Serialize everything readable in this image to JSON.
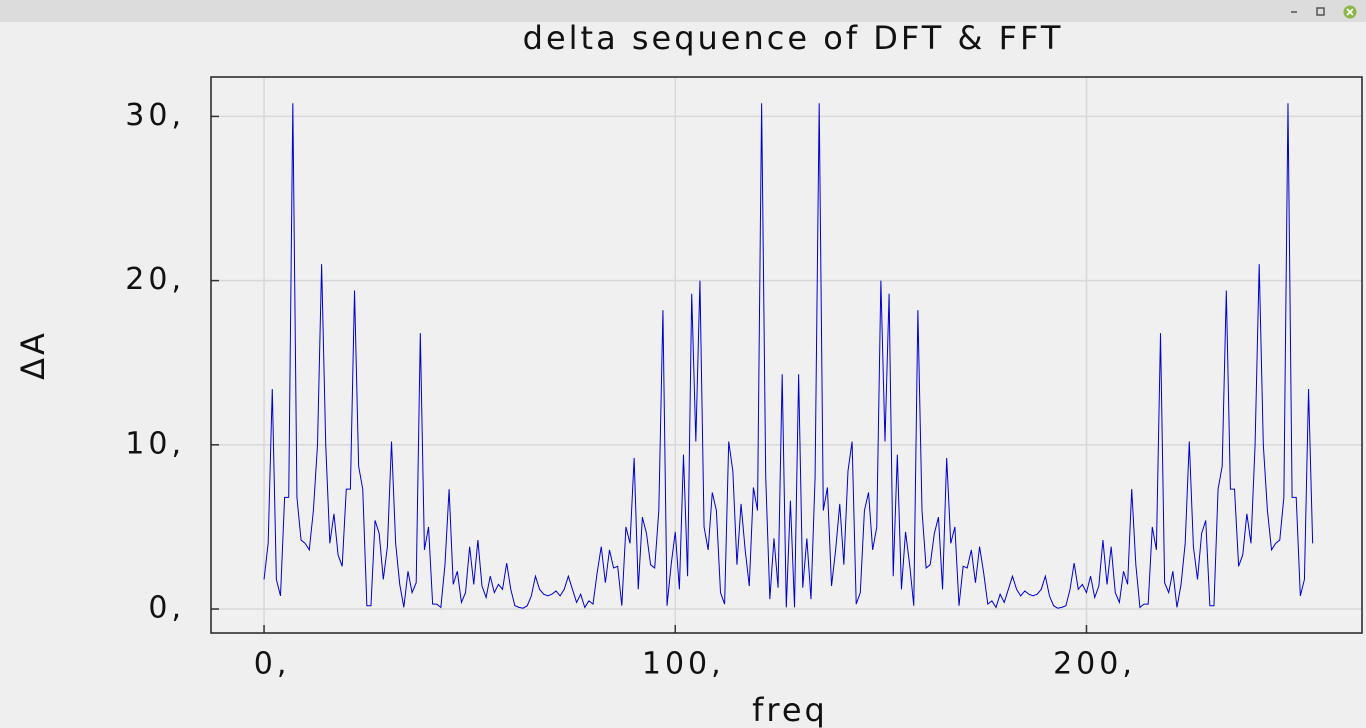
{
  "chart_data": {
    "type": "line",
    "title": "delta sequence of DFT & FFT",
    "x_label": "freq",
    "y_label": "ΔA",
    "color": "#0000cc",
    "grid": true,
    "xlim": [
      -12.9,
      267
    ],
    "ylim": [
      -1.46,
      32.4
    ],
    "xticks": [
      {
        "value": 0,
        "label": "0,"
      },
      {
        "value": 100,
        "label": "100,"
      },
      {
        "value": 200,
        "label": "200,"
      }
    ],
    "yticks": [
      {
        "value": 0,
        "label": "0,"
      },
      {
        "value": 10,
        "label": "10,"
      },
      {
        "value": 20,
        "label": "20,"
      },
      {
        "value": 30,
        "label": "30,"
      }
    ],
    "x": [
      0,
      1,
      2,
      3,
      4,
      5,
      6,
      7,
      8,
      9,
      10,
      11,
      12,
      13,
      14,
      15,
      16,
      17,
      18,
      19,
      20,
      21,
      22,
      23,
      24,
      25,
      26,
      27,
      28,
      29,
      30,
      31,
      32,
      33,
      34,
      35,
      36,
      37,
      38,
      39,
      40,
      41,
      42,
      43,
      44,
      45,
      46,
      47,
      48,
      49,
      50,
      51,
      52,
      53,
      54,
      55,
      56,
      57,
      58,
      59,
      60,
      61,
      62,
      63,
      64,
      65,
      66,
      67,
      68,
      69,
      70,
      71,
      72,
      73,
      74,
      75,
      76,
      77,
      78,
      79,
      80,
      81,
      82,
      83,
      84,
      85,
      86,
      87,
      88,
      89,
      90,
      91,
      92,
      93,
      94,
      95,
      96,
      97,
      98,
      99,
      100,
      101,
      102,
      103,
      104,
      105,
      106,
      107,
      108,
      109,
      110,
      111,
      112,
      113,
      114,
      115,
      116,
      117,
      118,
      119,
      120,
      121,
      122,
      123,
      124,
      125,
      126,
      127,
      128,
      129,
      130,
      131,
      132,
      133,
      134,
      135,
      136,
      137,
      138,
      139,
      140,
      141,
      142,
      143,
      144,
      145,
      146,
      147,
      148,
      149,
      150,
      151,
      152,
      153,
      154,
      155,
      156,
      157,
      158,
      159,
      160,
      161,
      162,
      163,
      164,
      165,
      166,
      167,
      168,
      169,
      170,
      171,
      172,
      173,
      174,
      175,
      176,
      177,
      178,
      179,
      180,
      181,
      182,
      183,
      184,
      185,
      186,
      187,
      188,
      189,
      190,
      191,
      192,
      193,
      194,
      195,
      196,
      197,
      198,
      199,
      200,
      201,
      202,
      203,
      204,
      205,
      206,
      207,
      208,
      209,
      210,
      211,
      212,
      213,
      214,
      215,
      216,
      217,
      218,
      219,
      220,
      221,
      222,
      223,
      224,
      225,
      226,
      227,
      228,
      229,
      230,
      231,
      232,
      233,
      234,
      235,
      236,
      237,
      238,
      239,
      240,
      241,
      242,
      243,
      244,
      245,
      246,
      247,
      248,
      249,
      250,
      251,
      252,
      253,
      254,
      255
    ],
    "values": [
      1.8,
      4,
      13.4,
      1.8,
      0.8,
      6.8,
      6.8,
      30.8,
      6.8,
      4.2,
      4,
      3.6,
      6,
      10,
      21,
      10,
      4,
      5.8,
      3.3,
      2.6,
      7.3,
      7.3,
      19.4,
      8.7,
      7.3,
      0.2,
      0.2,
      5.4,
      4.6,
      1.8,
      3.8,
      10.2,
      4,
      1.5,
      0.1,
      2.3,
      1,
      1.6,
      16.8,
      3.6,
      5,
      0.3,
      0.3,
      0.1,
      2.7,
      7.3,
      1.5,
      2.3,
      0.4,
      1,
      3.8,
      1.5,
      4.2,
      1.4,
      0.7,
      2,
      1,
      1.5,
      1.2,
      2.8,
      1.2,
      0.2,
      0.1,
      0.05,
      0.2,
      0.8,
      2,
      1.2,
      0.9,
      0.8,
      0.9,
      1.1,
      0.8,
      1.2,
      2,
      1.2,
      0.4,
      0.9,
      0.1,
      0.5,
      0.3,
      2.2,
      3.8,
      1.6,
      3.6,
      2.5,
      2.6,
      0.2,
      5,
      4,
      9.2,
      1.2,
      5.6,
      4.6,
      2.7,
      2.5,
      6,
      18.2,
      0.2,
      2.7,
      4.7,
      1.2,
      9.4,
      2,
      19.2,
      10.2,
      20,
      5,
      3.6,
      7.1,
      6,
      1,
      0.3,
      10.2,
      8.4,
      2.7,
      6.4,
      3.6,
      1.4,
      7.4,
      6,
      30.8,
      8,
      0.6,
      4.3,
      1.3,
      14.3,
      0.1,
      6.6,
      0.1,
      14.3,
      1.3,
      4.3,
      0.6,
      8,
      30.8,
      6,
      7.4,
      1.4,
      3.6,
      6.4,
      2.7,
      8.4,
      10.2,
      0.3,
      1,
      6,
      7.1,
      3.6,
      5,
      20,
      10.2,
      19.2,
      2,
      9.4,
      1.2,
      4.7,
      2.7,
      0.2,
      18.2,
      6,
      2.5,
      2.7,
      4.6,
      5.6,
      1.2,
      9.2,
      4,
      5,
      0.2,
      2.6,
      2.5,
      3.6,
      1.6,
      3.8,
      2.2,
      0.3,
      0.5,
      0.1,
      0.9,
      0.4,
      1.2,
      2,
      1.2,
      0.8,
      1.1,
      0.9,
      0.8,
      0.9,
      1.2,
      2,
      0.8,
      0.2,
      0.05,
      0.1,
      0.2,
      1.2,
      2.8,
      1.2,
      1.5,
      1,
      2,
      0.7,
      1.4,
      4.2,
      1.5,
      3.8,
      1,
      0.4,
      2.3,
      1.5,
      7.3,
      2.7,
      0.1,
      0.3,
      0.3,
      5,
      3.6,
      16.8,
      1.6,
      1,
      2.3,
      0.1,
      1.5,
      4,
      10.2,
      3.8,
      1.8,
      4.6,
      5.4,
      0.2,
      0.2,
      7.3,
      8.7,
      19.4,
      7.3,
      7.3,
      2.6,
      3.3,
      5.8,
      4,
      10,
      21,
      10,
      6,
      3.6,
      4,
      4.2,
      6.8,
      30.8,
      6.8,
      6.8,
      0.8,
      1.8,
      13.4,
      4
    ]
  }
}
